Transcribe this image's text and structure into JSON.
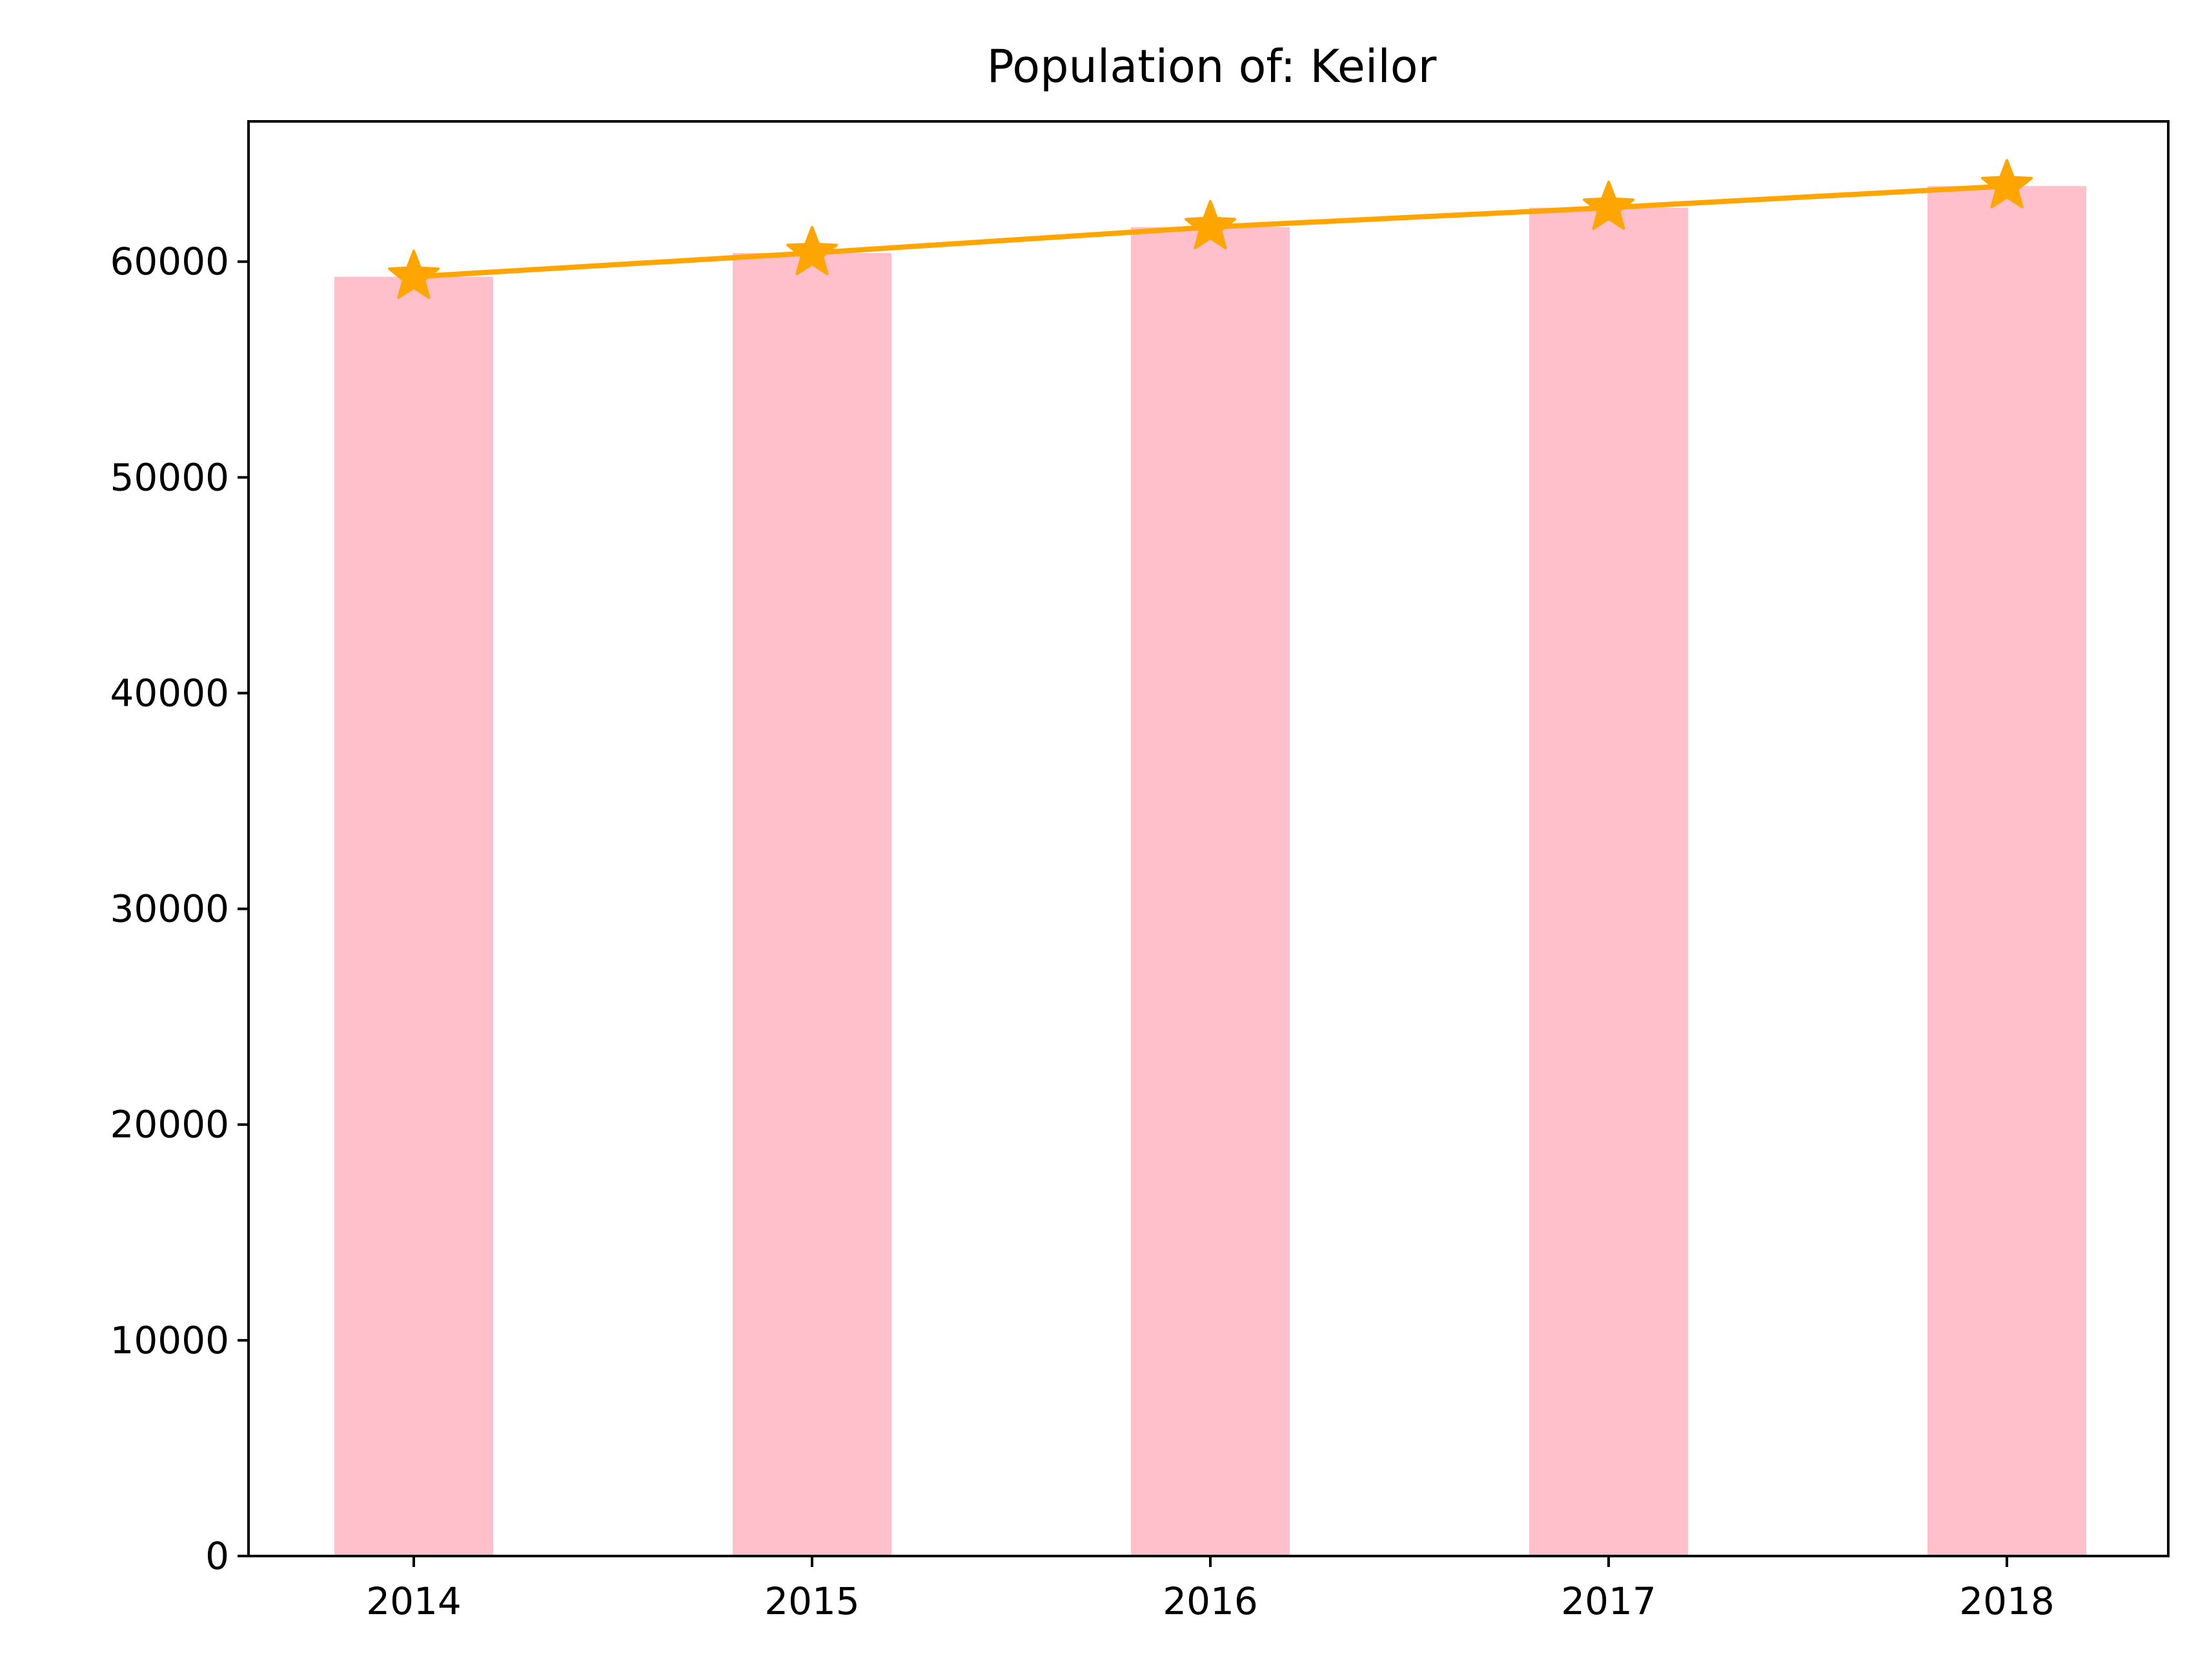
{
  "chart_data": {
    "type": "bar",
    "title": "Population of: Keilor",
    "xlabel": "",
    "ylabel": "",
    "categories": [
      "2014",
      "2015",
      "2016",
      "2017",
      "2018"
    ],
    "series": [
      {
        "type": "bar",
        "values": [
          59300,
          60400,
          61600,
          62500,
          63500
        ],
        "color": "#ffc0cb"
      },
      {
        "type": "line",
        "marker": "star",
        "values": [
          59300,
          60400,
          61600,
          62500,
          63500
        ],
        "color": "#ffa500"
      }
    ],
    "yticks": [
      0,
      10000,
      20000,
      30000,
      40000,
      50000,
      60000
    ],
    "ylim": [
      0,
      66500
    ],
    "grid": false,
    "legend": "none"
  }
}
